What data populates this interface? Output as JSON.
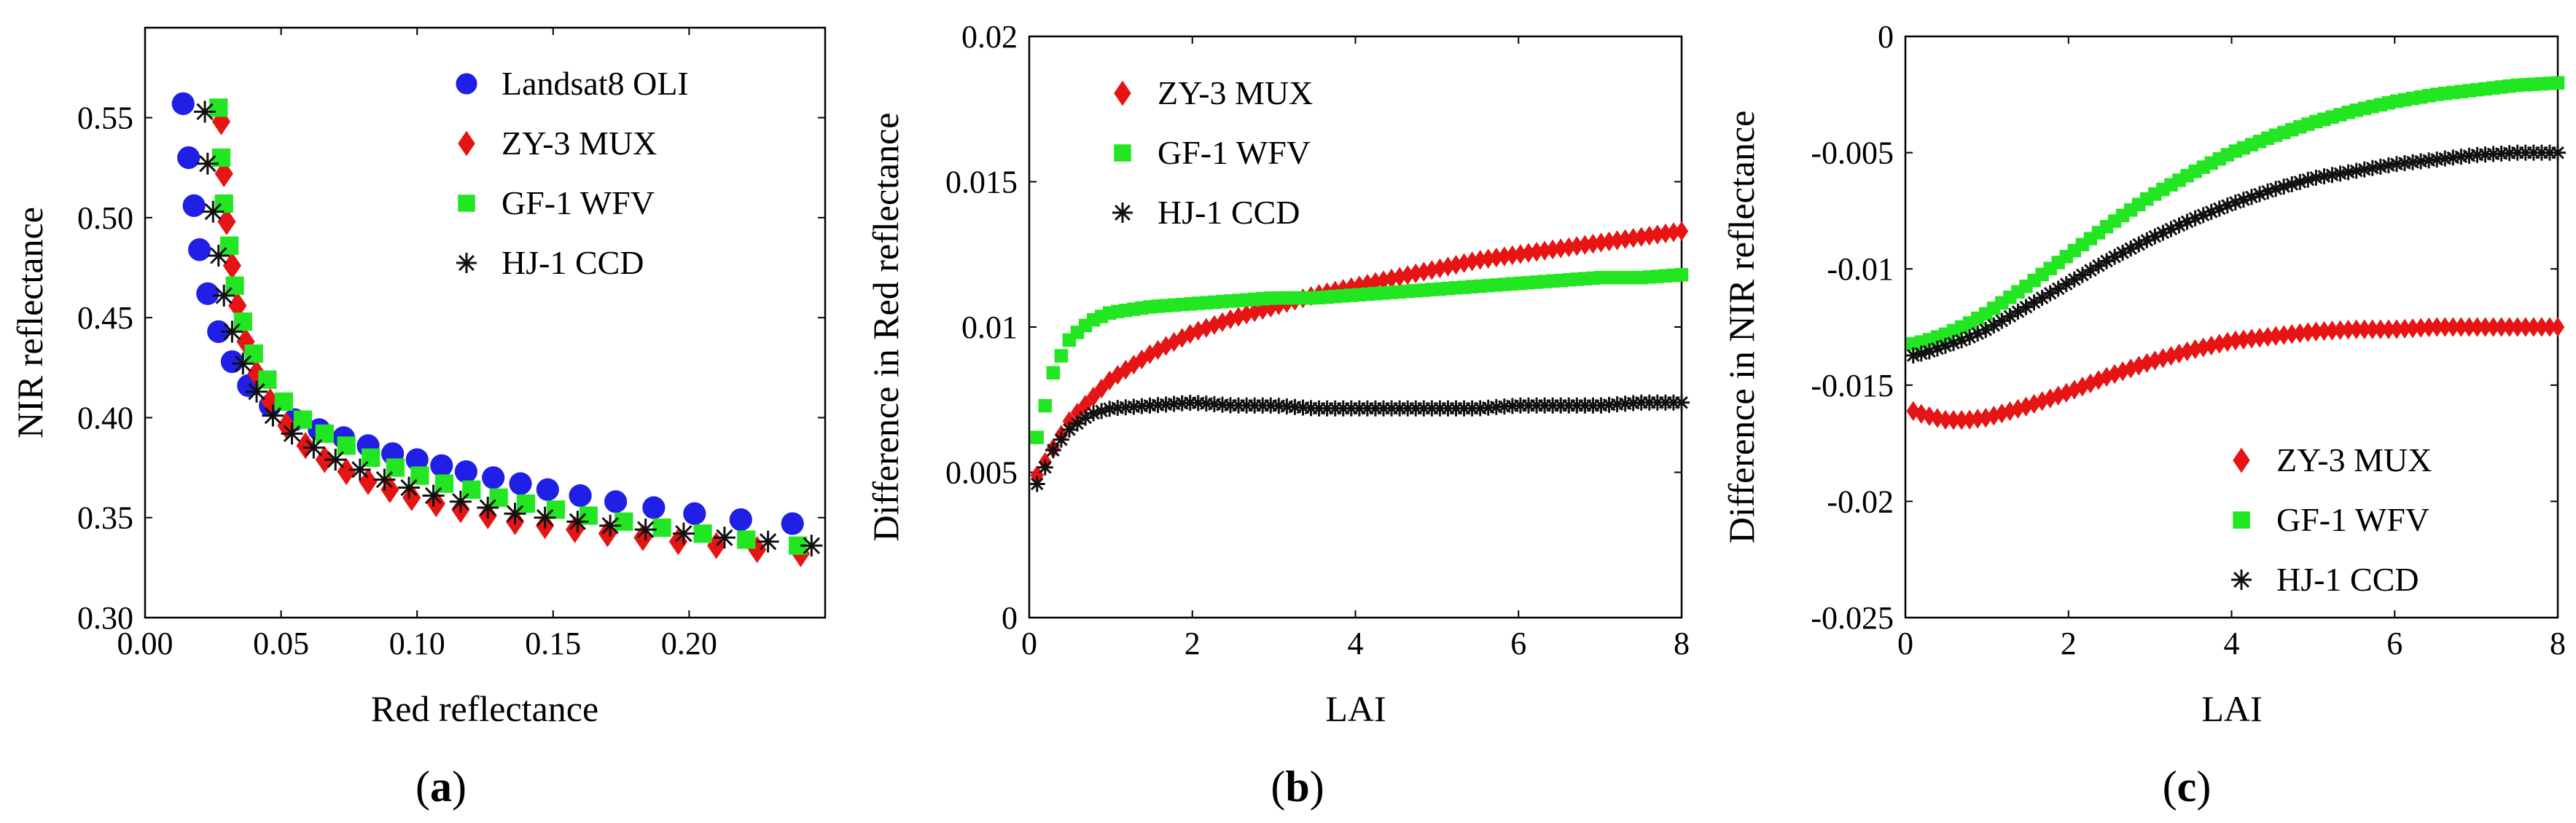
{
  "colors": {
    "landsat": "#1f1fe6",
    "zy3": "#e61414",
    "gf1": "#22e622",
    "hj1": "#111111"
  },
  "chart_data": [
    {
      "id": "a",
      "type": "scatter",
      "panel_label": "a",
      "xlabel": "Red reflectance",
      "ylabel": "NIR reflectance",
      "xlim": [
        0.0,
        0.25
      ],
      "ylim": [
        0.3,
        0.6
      ],
      "xticks": [
        "0.00",
        "0.05",
        "0.10",
        "0.15",
        "0.20"
      ],
      "yticks": [
        "0.30",
        "0.35",
        "0.40",
        "0.45",
        "0.50",
        "0.55"
      ],
      "legend_position": "top-right",
      "series": [
        {
          "name": "Landsat8 OLI",
          "marker": "circle",
          "color": "#1f1fe6",
          "x": [
            0.014,
            0.016,
            0.018,
            0.02,
            0.023,
            0.027,
            0.032,
            0.038,
            0.046,
            0.055,
            0.064,
            0.073,
            0.082,
            0.091,
            0.1,
            0.109,
            0.118,
            0.128,
            0.138,
            0.148,
            0.16,
            0.173,
            0.187,
            0.202,
            0.219,
            0.238
          ],
          "y": [
            0.557,
            0.53,
            0.506,
            0.484,
            0.462,
            0.443,
            0.428,
            0.416,
            0.406,
            0.399,
            0.394,
            0.39,
            0.386,
            0.382,
            0.379,
            0.376,
            0.373,
            0.37,
            0.367,
            0.364,
            0.361,
            0.358,
            0.355,
            0.352,
            0.349,
            0.347
          ]
        },
        {
          "name": "ZY-3 MUX",
          "marker": "diamond",
          "color": "#e61414",
          "x": [
            0.028,
            0.029,
            0.03,
            0.032,
            0.034,
            0.037,
            0.041,
            0.046,
            0.052,
            0.059,
            0.066,
            0.074,
            0.082,
            0.09,
            0.098,
            0.107,
            0.116,
            0.126,
            0.136,
            0.147,
            0.158,
            0.17,
            0.183,
            0.196,
            0.21,
            0.225,
            0.241
          ],
          "y": [
            0.548,
            0.522,
            0.498,
            0.476,
            0.456,
            0.438,
            0.422,
            0.408,
            0.396,
            0.386,
            0.379,
            0.373,
            0.368,
            0.364,
            0.36,
            0.357,
            0.354,
            0.351,
            0.348,
            0.346,
            0.344,
            0.342,
            0.34,
            0.338,
            0.336,
            0.334,
            0.332
          ]
        },
        {
          "name": "GF-1 WFV",
          "marker": "square",
          "color": "#22e622",
          "x": [
            0.027,
            0.028,
            0.029,
            0.031,
            0.033,
            0.036,
            0.04,
            0.045,
            0.051,
            0.058,
            0.066,
            0.074,
            0.083,
            0.092,
            0.101,
            0.11,
            0.12,
            0.13,
            0.14,
            0.151,
            0.163,
            0.176,
            0.19,
            0.205,
            0.221,
            0.24
          ],
          "y": [
            0.555,
            0.53,
            0.507,
            0.486,
            0.466,
            0.448,
            0.432,
            0.419,
            0.408,
            0.399,
            0.392,
            0.386,
            0.38,
            0.375,
            0.371,
            0.367,
            0.364,
            0.36,
            0.357,
            0.354,
            0.351,
            0.348,
            0.345,
            0.342,
            0.339,
            0.336
          ]
        },
        {
          "name": "HJ-1 CCD",
          "marker": "asterisk",
          "color": "#111111",
          "x": [
            0.022,
            0.023,
            0.025,
            0.027,
            0.029,
            0.032,
            0.036,
            0.041,
            0.047,
            0.054,
            0.062,
            0.07,
            0.079,
            0.088,
            0.097,
            0.106,
            0.116,
            0.126,
            0.136,
            0.147,
            0.159,
            0.171,
            0.184,
            0.198,
            0.213,
            0.229,
            0.245
          ],
          "y": [
            0.553,
            0.527,
            0.503,
            0.481,
            0.461,
            0.443,
            0.427,
            0.413,
            0.401,
            0.392,
            0.385,
            0.379,
            0.374,
            0.369,
            0.365,
            0.361,
            0.358,
            0.355,
            0.352,
            0.35,
            0.348,
            0.346,
            0.344,
            0.342,
            0.34,
            0.338,
            0.336
          ]
        }
      ]
    },
    {
      "id": "b",
      "type": "scatter",
      "panel_label": "b",
      "xlabel": "LAI",
      "ylabel": "Difference in Red reflectance",
      "xlim": [
        0,
        8
      ],
      "ylim": [
        0,
        0.02
      ],
      "xticks": [
        "0",
        "2",
        "4",
        "6",
        "8"
      ],
      "yticks": [
        "0",
        "0.005",
        "0.01",
        "0.015",
        "0.02"
      ],
      "legend_position": "top-left",
      "series": [
        {
          "name": "ZY-3 MUX",
          "marker": "diamond",
          "color": "#e61414",
          "x": [
            0.1,
            0.5,
            1,
            1.5,
            2,
            2.5,
            3,
            3.5,
            4,
            4.5,
            5,
            5.5,
            6,
            6.5,
            7,
            7.5,
            8
          ],
          "y": [
            0.0049,
            0.0068,
            0.0082,
            0.0091,
            0.0098,
            0.0103,
            0.0107,
            0.0111,
            0.0114,
            0.0117,
            0.012,
            0.0123,
            0.0125,
            0.0127,
            0.0129,
            0.0131,
            0.0133
          ]
        },
        {
          "name": "GF-1 WFV",
          "marker": "square",
          "color": "#22e622",
          "x": [
            0.1,
            0.3,
            0.5,
            0.75,
            1,
            1.5,
            2,
            2.5,
            3,
            3.5,
            4,
            4.5,
            5,
            5.5,
            6,
            6.5,
            7,
            7.5,
            8
          ],
          "y": [
            0.0062,
            0.0085,
            0.0096,
            0.0102,
            0.0105,
            0.0107,
            0.0108,
            0.0109,
            0.011,
            0.011,
            0.0111,
            0.0112,
            0.0113,
            0.0114,
            0.0115,
            0.0116,
            0.0117,
            0.0117,
            0.0118
          ]
        },
        {
          "name": "HJ-1 CCD",
          "marker": "asterisk",
          "color": "#111111",
          "x": [
            0.1,
            0.3,
            0.5,
            0.75,
            1,
            1.5,
            2,
            2.5,
            3,
            3.5,
            4,
            4.5,
            5,
            5.5,
            6,
            6.5,
            7,
            7.5,
            8
          ],
          "y": [
            0.0046,
            0.0058,
            0.0065,
            0.007,
            0.0072,
            0.0073,
            0.0074,
            0.0073,
            0.0073,
            0.0072,
            0.0072,
            0.0072,
            0.0072,
            0.0072,
            0.0073,
            0.0073,
            0.0073,
            0.0074,
            0.0074
          ]
        }
      ]
    },
    {
      "id": "c",
      "type": "scatter",
      "panel_label": "c",
      "xlabel": "LAI",
      "ylabel": "Difference in NIR reflectance",
      "xlim": [
        0,
        8
      ],
      "ylim": [
        -0.025,
        0
      ],
      "xticks": [
        "0",
        "2",
        "4",
        "6",
        "8"
      ],
      "yticks": [
        "-0.025",
        "-0.02",
        "-0.015",
        "-0.01",
        "-0.005",
        "0"
      ],
      "legend_position": "bottom-right",
      "series": [
        {
          "name": "ZY-3 MUX",
          "marker": "diamond",
          "color": "#e61414",
          "x": [
            0,
            0.25,
            0.5,
            0.75,
            1,
            1.5,
            2,
            2.5,
            3,
            3.5,
            4,
            4.5,
            5,
            5.5,
            6,
            6.5,
            7,
            7.5,
            8
          ],
          "y": [
            -0.016,
            -0.0163,
            -0.0165,
            -0.0165,
            -0.0164,
            -0.0159,
            -0.0153,
            -0.0146,
            -0.014,
            -0.0135,
            -0.0131,
            -0.0129,
            -0.0127,
            -0.0126,
            -0.0126,
            -0.0125,
            -0.0125,
            -0.0125,
            -0.0125
          ]
        },
        {
          "name": "GF-1 WFV",
          "marker": "square",
          "color": "#22e622",
          "x": [
            0,
            0.25,
            0.5,
            0.75,
            1,
            1.5,
            2,
            2.5,
            3,
            3.5,
            4,
            4.5,
            5,
            5.5,
            6,
            6.5,
            7,
            7.5,
            8
          ],
          "y": [
            -0.0133,
            -0.0131,
            -0.0128,
            -0.0124,
            -0.0119,
            -0.0107,
            -0.0094,
            -0.0081,
            -0.0069,
            -0.0059,
            -0.005,
            -0.0043,
            -0.0037,
            -0.0032,
            -0.0028,
            -0.0025,
            -0.0023,
            -0.0021,
            -0.002
          ]
        },
        {
          "name": "HJ-1 CCD",
          "marker": "asterisk",
          "color": "#111111",
          "x": [
            0,
            0.25,
            0.5,
            0.75,
            1,
            1.5,
            2,
            2.5,
            3,
            3.5,
            4,
            4.5,
            5,
            5.5,
            6,
            6.5,
            7,
            7.5,
            8
          ],
          "y": [
            -0.0138,
            -0.0136,
            -0.0133,
            -0.013,
            -0.0126,
            -0.0116,
            -0.0106,
            -0.0096,
            -0.0087,
            -0.0079,
            -0.0072,
            -0.0066,
            -0.0061,
            -0.0058,
            -0.0055,
            -0.0053,
            -0.0051,
            -0.005,
            -0.005
          ]
        }
      ]
    }
  ]
}
